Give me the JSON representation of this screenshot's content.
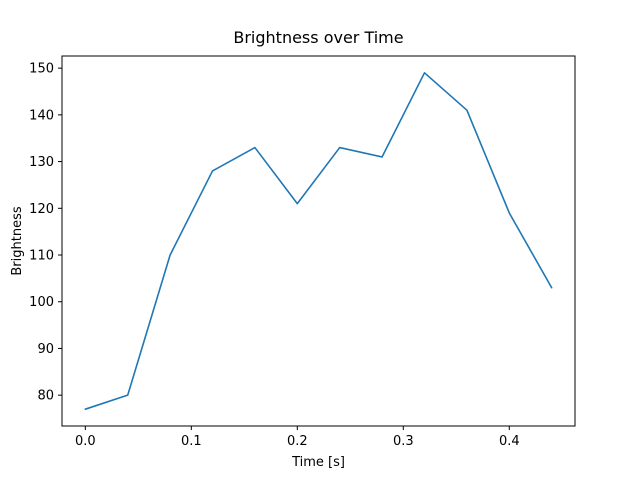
{
  "figure": {
    "title": "Brightness over Time",
    "xlabel": "Time [s]",
    "ylabel": "Brightness",
    "background": "#ffffff"
  },
  "chart_data": {
    "type": "line",
    "title": "Brightness over Time",
    "xlabel": "Time [s]",
    "ylabel": "Brightness",
    "x": [
      0.0,
      0.04,
      0.08,
      0.12,
      0.16,
      0.2,
      0.24,
      0.28,
      0.32,
      0.36,
      0.4,
      0.44
    ],
    "series": [
      {
        "name": "brightness",
        "values": [
          77,
          80,
          110,
          128,
          133,
          121,
          133,
          131,
          149,
          141,
          119,
          103
        ],
        "color": "#1f77b4"
      }
    ],
    "xlim": [
      -0.022,
      0.462
    ],
    "ylim": [
      73.4,
      152.6
    ],
    "xticks": [
      0.0,
      0.1,
      0.2,
      0.3,
      0.4
    ],
    "xtick_labels": [
      "0.0",
      "0.1",
      "0.2",
      "0.3",
      "0.4"
    ],
    "yticks": [
      80,
      90,
      100,
      110,
      120,
      130,
      140,
      150
    ],
    "ytick_labels": [
      "80",
      "90",
      "100",
      "110",
      "120",
      "130",
      "140",
      "150"
    ],
    "grid": false,
    "legend_position": "none",
    "line_color": "#1f77b4",
    "axis_color": "#000000",
    "background": "#ffffff"
  }
}
